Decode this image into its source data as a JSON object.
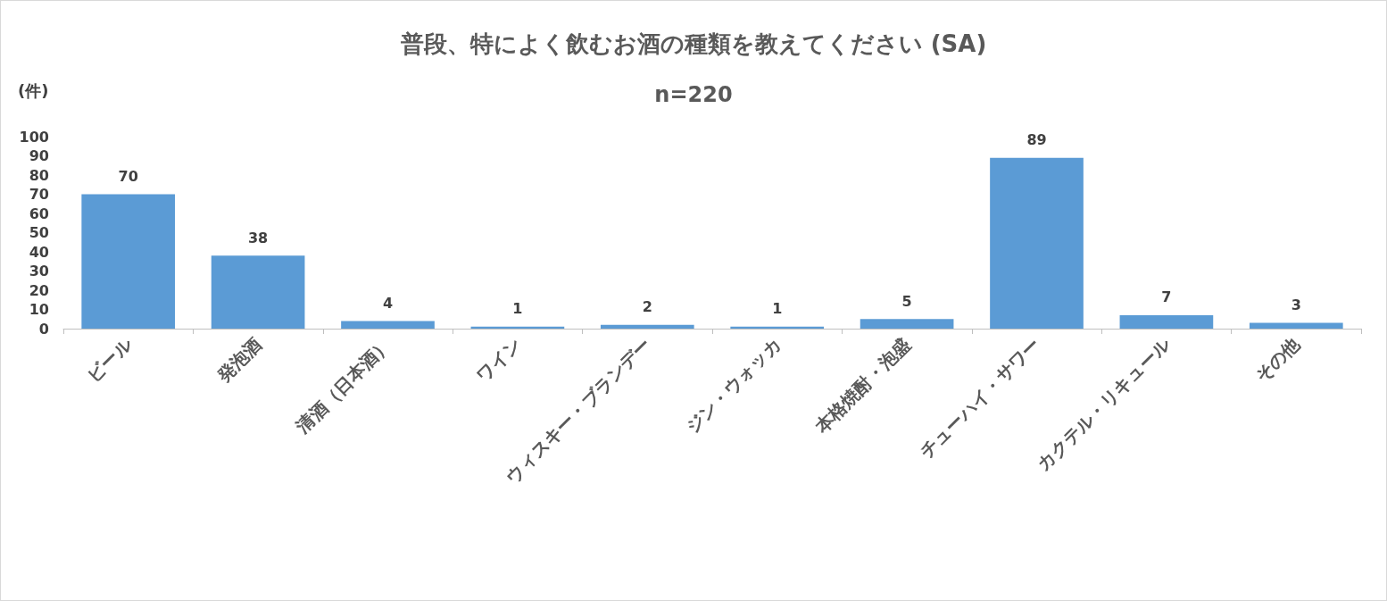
{
  "chart_data": {
    "type": "bar",
    "title": "普段、特によく飲むお酒の種類を教えてください (SA)",
    "subtitle": "n=220",
    "ylabel": "(件)",
    "categories": [
      "ビール",
      "発泡酒",
      "清酒（日本酒）",
      "ワイン",
      "ウィスキー・ブランデー",
      "ジン・ウォッカ",
      "本格焼酎・泡盛",
      "チューハイ・サワー",
      "カクテル・リキュール",
      "その他"
    ],
    "values": [
      70,
      38,
      4,
      1,
      2,
      1,
      5,
      89,
      7,
      3
    ],
    "color": "#5b9bd5",
    "ylim": [
      0,
      100
    ],
    "yticks": [
      0,
      10,
      20,
      30,
      40,
      50,
      60,
      70,
      80,
      90,
      100
    ],
    "grid": false,
    "data_labels": true
  }
}
